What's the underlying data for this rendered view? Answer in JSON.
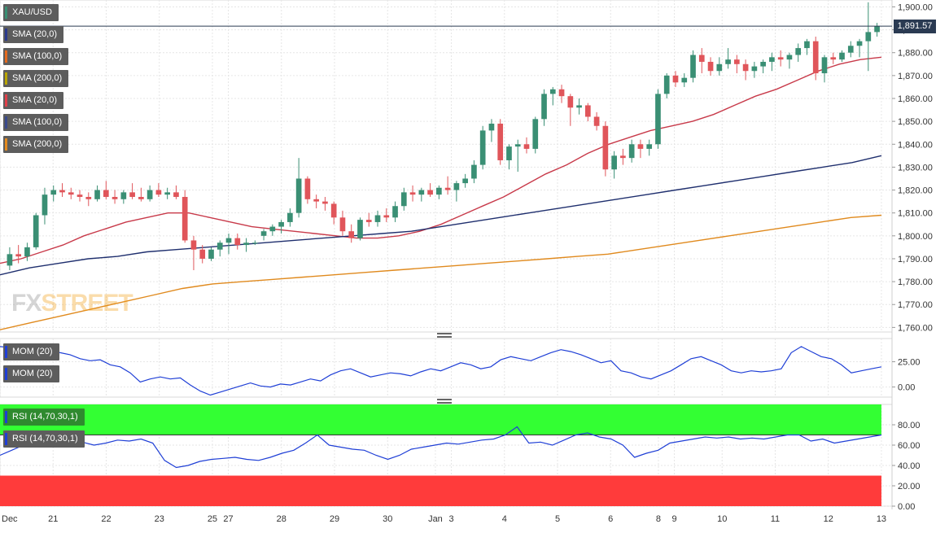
{
  "symbol": "XAU/USD",
  "last_price_label": "1,891.57",
  "logo": {
    "part1": "FX",
    "part2": "STREET"
  },
  "legend": [
    {
      "label": "SMA (20,0)",
      "color": "#2b3a8c"
    },
    {
      "label": "SMA (100,0)",
      "color": "#e46a1e"
    },
    {
      "label": "SMA (200,0)",
      "color": "#b9a500"
    },
    {
      "label": "SMA (20,0)",
      "color": "#e0404a"
    },
    {
      "label": "SMA (100,0)",
      "color": "#3a4a8c"
    },
    {
      "label": "SMA (200,0)",
      "color": "#e48a1e"
    }
  ],
  "mom_legend": [
    "MOM (20)",
    "MOM (20)"
  ],
  "rsi_legend": [
    "RSI (14,70,30,1)",
    "RSI (14,70,30,1)"
  ],
  "colors": {
    "up": "#3a8f74",
    "down": "#e0555a",
    "sma20": "#c83a4a",
    "sma100": "#1f2f6e",
    "sma200": "#e08a1e",
    "momentum": "#1f3fd6",
    "rsi": "#1f3fd6",
    "overbought": "#33ff33",
    "oversold": "#ff3b3b",
    "grid": "#e6e6e6"
  },
  "chart_data": [
    {
      "type": "candlestick",
      "title": "XAU/USD",
      "ylim": [
        1758,
        1903
      ],
      "y_ticks": [
        1760,
        1770,
        1780,
        1790,
        1800,
        1810,
        1820,
        1830,
        1840,
        1850,
        1860,
        1870,
        1880,
        1890,
        1900
      ],
      "y_tick_labels": [
        "1,760.00",
        "1,770.00",
        "1,780.00",
        "1,790.00",
        "1,800.00",
        "1,810.00",
        "1,820.00",
        "1,830.00",
        "1,840.00",
        "1,850.00",
        "1,860.00",
        "1,870.00",
        "1,880.00",
        "1,890.00",
        "1,900.00"
      ],
      "last_price": 1891.57,
      "x_ticks": [
        {
          "label": "Dec",
          "index": 0
        },
        {
          "label": "21",
          "index": 10
        },
        {
          "label": "22",
          "index": 20
        },
        {
          "label": "23",
          "index": 30
        },
        {
          "label": "25",
          "index": 40
        },
        {
          "label": "27",
          "index": 43
        },
        {
          "label": "28",
          "index": 53
        },
        {
          "label": "29",
          "index": 63
        },
        {
          "label": "30",
          "index": 73
        },
        {
          "label": "Jan",
          "index": 82
        },
        {
          "label": "3",
          "index": 85
        },
        {
          "label": "4",
          "index": 95
        },
        {
          "label": "5",
          "index": 105
        },
        {
          "label": "6",
          "index": 115
        },
        {
          "label": "8",
          "index": 124
        },
        {
          "label": "9",
          "index": 127
        },
        {
          "label": "10",
          "index": 136
        },
        {
          "label": "11",
          "index": 146
        },
        {
          "label": "12",
          "index": 156
        },
        {
          "label": "13",
          "index": 166
        }
      ],
      "candles": [
        [
          1787,
          1795,
          1785,
          1792
        ],
        [
          1792,
          1796,
          1788,
          1791
        ],
        [
          1791,
          1797,
          1789,
          1795
        ],
        [
          1795,
          1810,
          1794,
          1809
        ],
        [
          1809,
          1821,
          1805,
          1818
        ],
        [
          1818,
          1822,
          1815,
          1820
        ],
        [
          1820,
          1823,
          1817,
          1819
        ],
        [
          1819,
          1821,
          1816,
          1818
        ],
        [
          1818,
          1820,
          1815,
          1817
        ],
        [
          1817,
          1819,
          1813,
          1816
        ],
        [
          1816,
          1822,
          1815,
          1820
        ],
        [
          1820,
          1824,
          1816,
          1817
        ],
        [
          1817,
          1820,
          1814,
          1816
        ],
        [
          1816,
          1820,
          1814,
          1819
        ],
        [
          1819,
          1823,
          1816,
          1817
        ],
        [
          1817,
          1821,
          1815,
          1816
        ],
        [
          1816,
          1822,
          1815,
          1820
        ],
        [
          1820,
          1823,
          1817,
          1818
        ],
        [
          1818,
          1821,
          1816,
          1819
        ],
        [
          1819,
          1822,
          1816,
          1817
        ],
        [
          1817,
          1820,
          1797,
          1798
        ],
        [
          1798,
          1800,
          1785,
          1794
        ],
        [
          1794,
          1796,
          1788,
          1790
        ],
        [
          1790,
          1795,
          1789,
          1794
        ],
        [
          1794,
          1798,
          1791,
          1797
        ],
        [
          1797,
          1801,
          1792,
          1799
        ],
        [
          1799,
          1801,
          1794,
          1796
        ],
        [
          1796,
          1799,
          1793,
          1797
        ],
        [
          1797,
          1798,
          1796,
          1797
        ],
        [
          1800,
          1803,
          1798,
          1802
        ],
        [
          1802,
          1805,
          1800,
          1804
        ],
        [
          1804,
          1807,
          1801,
          1806
        ],
        [
          1806,
          1812,
          1804,
          1810
        ],
        [
          1810,
          1834,
          1808,
          1825
        ],
        [
          1825,
          1826,
          1814,
          1816
        ],
        [
          1816,
          1818,
          1812,
          1815
        ],
        [
          1815,
          1817,
          1811,
          1814
        ],
        [
          1814,
          1815,
          1805,
          1808
        ],
        [
          1808,
          1811,
          1800,
          1802
        ],
        [
          1802,
          1805,
          1797,
          1799
        ],
        [
          1799,
          1808,
          1798,
          1807
        ],
        [
          1807,
          1810,
          1804,
          1806
        ],
        [
          1806,
          1811,
          1804,
          1809
        ],
        [
          1809,
          1812,
          1806,
          1808
        ],
        [
          1808,
          1815,
          1806,
          1813
        ],
        [
          1813,
          1821,
          1811,
          1819
        ],
        [
          1819,
          1822,
          1815,
          1818
        ],
        [
          1818,
          1821,
          1815,
          1820
        ],
        [
          1820,
          1823,
          1817,
          1818
        ],
        [
          1818,
          1822,
          1816,
          1821
        ],
        [
          1821,
          1826,
          1818,
          1820
        ],
        [
          1820,
          1824,
          1815,
          1823
        ],
        [
          1823,
          1827,
          1821,
          1825
        ],
        [
          1825,
          1833,
          1823,
          1831
        ],
        [
          1831,
          1848,
          1829,
          1846
        ],
        [
          1846,
          1851,
          1841,
          1849
        ],
        [
          1849,
          1851,
          1831,
          1833
        ],
        [
          1833,
          1840,
          1829,
          1839
        ],
        [
          1839,
          1842,
          1828,
          1840
        ],
        [
          1840,
          1843,
          1836,
          1838
        ],
        [
          1838,
          1852,
          1836,
          1851
        ],
        [
          1851,
          1864,
          1848,
          1862
        ],
        [
          1862,
          1865,
          1857,
          1864
        ],
        [
          1864,
          1866,
          1858,
          1861
        ],
        [
          1861,
          1862,
          1848,
          1856
        ],
        [
          1856,
          1860,
          1853,
          1857
        ],
        [
          1857,
          1858,
          1850,
          1852
        ],
        [
          1852,
          1854,
          1846,
          1848
        ],
        [
          1848,
          1850,
          1826,
          1829
        ],
        [
          1829,
          1837,
          1825,
          1835
        ],
        [
          1835,
          1838,
          1831,
          1834
        ],
        [
          1834,
          1842,
          1832,
          1840
        ],
        [
          1840,
          1842,
          1834,
          1838
        ],
        [
          1838,
          1842,
          1835,
          1840
        ],
        [
          1840,
          1864,
          1838,
          1862
        ],
        [
          1862,
          1871,
          1860,
          1870
        ],
        [
          1870,
          1872,
          1865,
          1867
        ],
        [
          1867,
          1871,
          1865,
          1869
        ],
        [
          1869,
          1881,
          1867,
          1879
        ],
        [
          1879,
          1882,
          1871,
          1876
        ],
        [
          1876,
          1878,
          1870,
          1872
        ],
        [
          1872,
          1878,
          1870,
          1875
        ],
        [
          1875,
          1882,
          1873,
          1877
        ],
        [
          1877,
          1879,
          1871,
          1875
        ],
        [
          1875,
          1877,
          1868,
          1872
        ],
        [
          1872,
          1876,
          1869,
          1874
        ],
        [
          1874,
          1877,
          1871,
          1876
        ],
        [
          1876,
          1880,
          1872,
          1878
        ],
        [
          1878,
          1881,
          1874,
          1877
        ],
        [
          1877,
          1880,
          1873,
          1879
        ],
        [
          1879,
          1884,
          1876,
          1882
        ],
        [
          1882,
          1886,
          1879,
          1885
        ],
        [
          1885,
          1887,
          1868,
          1871
        ],
        [
          1871,
          1879,
          1867,
          1878
        ],
        [
          1878,
          1880,
          1875,
          1877
        ],
        [
          1877,
          1881,
          1876,
          1880
        ],
        [
          1880,
          1885,
          1878,
          1883
        ],
        [
          1883,
          1886,
          1878,
          1885
        ],
        [
          1885,
          1902,
          1872,
          1889
        ],
        [
          1889,
          1893,
          1887,
          1891.57
        ]
      ],
      "series": [
        {
          "name": "SMA (20,0)",
          "values": [
            1788,
            1790,
            1793,
            1796,
            1800,
            1803,
            1806,
            1808,
            1810,
            1810,
            1808,
            1806,
            1804,
            1803,
            1802,
            1801,
            1800,
            1799,
            1799,
            1800,
            1802,
            1805,
            1809,
            1813,
            1817,
            1822,
            1827,
            1831,
            1836,
            1840,
            1843,
            1846,
            1848,
            1850,
            1853,
            1857,
            1861,
            1864,
            1868,
            1872,
            1875,
            1877,
            1878
          ]
        },
        {
          "name": "SMA (100,0)",
          "values": [
            1783,
            1786,
            1788,
            1790,
            1791,
            1793,
            1794,
            1795,
            1796,
            1797,
            1798,
            1799,
            1800,
            1801,
            1802,
            1804,
            1806,
            1808,
            1810,
            1812,
            1814,
            1816,
            1818,
            1820,
            1822,
            1824,
            1826,
            1828,
            1830,
            1832,
            1835
          ]
        },
        {
          "name": "SMA (200,0)",
          "values": [
            1759,
            1762,
            1765,
            1768,
            1771,
            1774,
            1777,
            1779,
            1780,
            1781,
            1782,
            1783,
            1784,
            1785,
            1786,
            1787,
            1788,
            1789,
            1790,
            1791,
            1792,
            1794,
            1796,
            1798,
            1800,
            1802,
            1804,
            1806,
            1808,
            1809
          ]
        }
      ]
    },
    {
      "type": "line",
      "title": "MOM (20)",
      "ylim": [
        -10,
        48
      ],
      "y_ticks": [
        0,
        25
      ],
      "y_tick_labels": [
        "0.00",
        "25.00"
      ],
      "series": [
        {
          "name": "MOM (20)",
          "values": [
            40,
            39,
            38,
            36,
            35,
            37,
            34,
            32,
            28,
            26,
            27,
            22,
            20,
            14,
            5,
            8,
            10,
            8,
            9,
            2,
            -4,
            -8,
            -5,
            -2,
            1,
            4,
            1,
            0,
            3,
            2,
            5,
            8,
            6,
            12,
            16,
            18,
            14,
            10,
            12,
            14,
            13,
            11,
            15,
            18,
            16,
            20,
            24,
            22,
            18,
            20,
            27,
            30,
            28,
            26,
            30,
            34,
            37,
            35,
            32,
            28,
            24,
            26,
            16,
            14,
            10,
            8,
            12,
            16,
            22,
            28,
            30,
            26,
            22,
            16,
            14,
            16,
            15,
            16,
            18,
            34,
            40,
            35,
            30,
            28,
            22,
            14,
            16,
            18,
            20
          ]
        }
      ]
    },
    {
      "type": "line",
      "title": "RSI (14,70,30,1)",
      "ylim": [
        0,
        100
      ],
      "y_ticks": [
        0,
        20,
        40,
        60,
        80
      ],
      "y_tick_labels": [
        "0.00",
        "20.00",
        "40.00",
        "60.00",
        "80.00"
      ],
      "overbought": 70,
      "oversold": 30,
      "series": [
        {
          "name": "RSI (14,70,30,1)",
          "values": [
            50,
            55,
            60,
            62,
            64,
            66,
            65,
            63,
            60,
            62,
            65,
            64,
            66,
            62,
            45,
            38,
            40,
            44,
            46,
            47,
            48,
            46,
            45,
            48,
            52,
            55,
            62,
            70,
            60,
            58,
            56,
            55,
            50,
            46,
            50,
            56,
            58,
            60,
            62,
            61,
            63,
            65,
            66,
            70,
            78,
            62,
            63,
            60,
            65,
            70,
            72,
            68,
            66,
            60,
            48,
            52,
            55,
            62,
            64,
            66,
            68,
            67,
            68,
            66,
            67,
            66,
            68,
            70,
            70,
            64,
            66,
            62,
            64,
            66,
            68,
            70
          ]
        }
      ]
    }
  ]
}
